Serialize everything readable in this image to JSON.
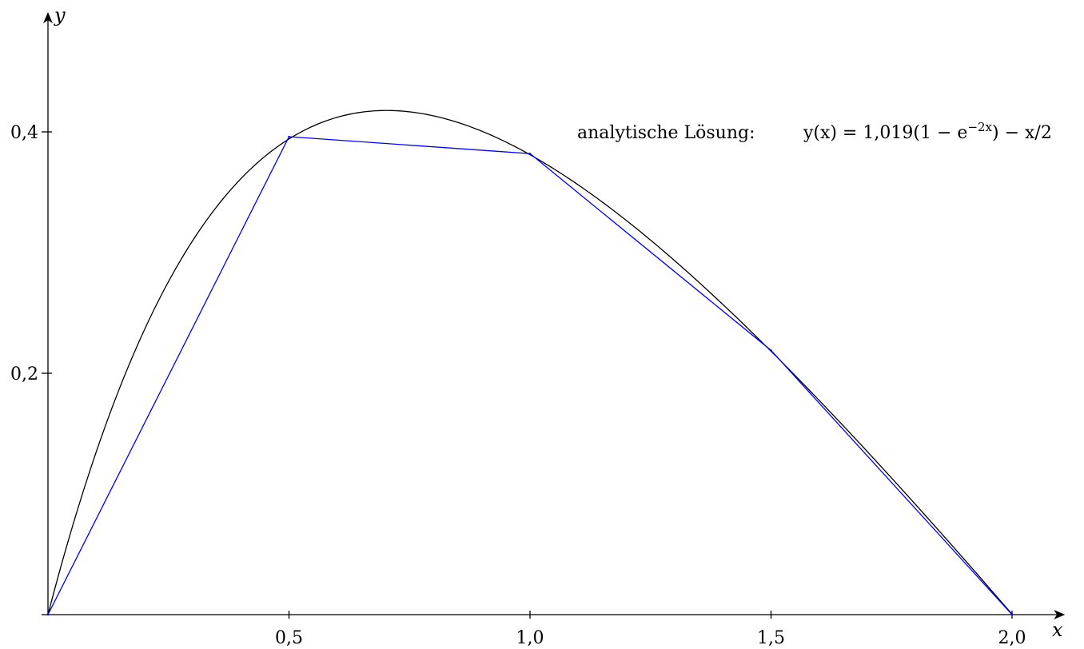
{
  "chart_data": {
    "type": "line",
    "title": "",
    "xlabel": "x",
    "ylabel": "y",
    "xlim": [
      0,
      2.07
    ],
    "ylim": [
      0,
      0.48
    ],
    "grid": false,
    "x_ticks": [
      {
        "value": 0.5,
        "label": "0,5"
      },
      {
        "value": 1.0,
        "label": "1,0"
      },
      {
        "value": 1.5,
        "label": "1,5"
      },
      {
        "value": 2.0,
        "label": "2,0"
      }
    ],
    "y_ticks": [
      {
        "value": 0.2,
        "label": "0,2"
      },
      {
        "value": 0.4,
        "label": "0,4"
      }
    ],
    "analytic": {
      "color": "#000000",
      "coefficient": 1.019,
      "rate": 2,
      "slope": 0.5,
      "x_range": [
        0,
        2
      ]
    },
    "series": [
      {
        "color": "#0000ff",
        "x": [
          0,
          0.5,
          1.0,
          1.5,
          2.0
        ],
        "y": [
          0,
          0.396,
          0.382,
          0.219,
          0
        ]
      }
    ],
    "annotation": {
      "text": "analytische Lösung:",
      "formula_lhs": "y(x) = 1,019(1 − e",
      "formula_exp": "−2x",
      "formula_rhs": ") − x/2"
    }
  }
}
